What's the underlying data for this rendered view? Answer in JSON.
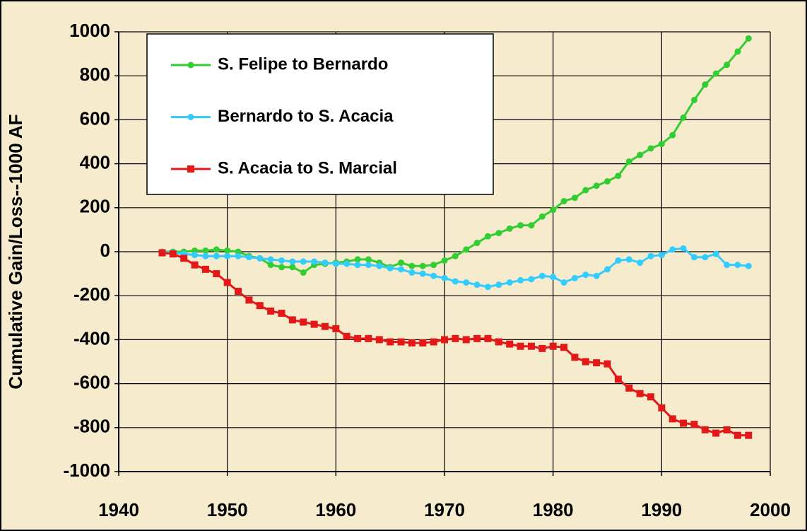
{
  "chart_data": {
    "type": "line",
    "ylabel": "Cumulative Gain/Loss--1000 AF",
    "x": [
      1944,
      1945,
      1946,
      1947,
      1948,
      1949,
      1950,
      1951,
      1952,
      1953,
      1954,
      1955,
      1956,
      1957,
      1958,
      1959,
      1960,
      1961,
      1962,
      1963,
      1964,
      1965,
      1966,
      1967,
      1968,
      1969,
      1970,
      1971,
      1972,
      1973,
      1974,
      1975,
      1976,
      1977,
      1978,
      1979,
      1980,
      1981,
      1982,
      1983,
      1984,
      1985,
      1986,
      1987,
      1988,
      1989,
      1990,
      1991,
      1992,
      1993,
      1994,
      1995,
      1996,
      1997,
      1998
    ],
    "series": [
      {
        "name": "S. Felipe to Bernardo",
        "color": "#33cc33",
        "marker": "circle",
        "values": [
          0,
          0,
          0,
          5,
          5,
          10,
          5,
          0,
          -20,
          -30,
          -60,
          -70,
          -70,
          -95,
          -60,
          -55,
          -50,
          -45,
          -35,
          -35,
          -50,
          -70,
          -50,
          -65,
          -65,
          -60,
          -40,
          -20,
          10,
          40,
          70,
          85,
          105,
          120,
          120,
          160,
          190,
          230,
          245,
          280,
          300,
          320,
          345,
          410,
          440,
          470,
          490,
          530,
          610,
          690,
          760,
          810,
          850,
          910,
          970
        ]
      },
      {
        "name": "Bernardo to S. Acacia",
        "color": "#33ccff",
        "marker": "circle",
        "values": [
          0,
          -5,
          -10,
          -15,
          -20,
          -20,
          -20,
          -20,
          -25,
          -30,
          -35,
          -40,
          -45,
          -45,
          -45,
          -50,
          -55,
          -55,
          -60,
          -60,
          -65,
          -75,
          -80,
          -95,
          -100,
          -110,
          -120,
          -135,
          -140,
          -150,
          -160,
          -150,
          -140,
          -130,
          -125,
          -110,
          -115,
          -140,
          -120,
          -105,
          -110,
          -80,
          -40,
          -35,
          -50,
          -20,
          -15,
          10,
          15,
          -25,
          -25,
          -10,
          -60,
          -60,
          -65
        ]
      },
      {
        "name": "S. Acacia to S. Marcial",
        "color": "#e31919",
        "marker": "square",
        "values": [
          -5,
          -10,
          -30,
          -60,
          -80,
          -100,
          -140,
          -180,
          -220,
          -245,
          -270,
          -280,
          -310,
          -320,
          -330,
          -340,
          -350,
          -385,
          -395,
          -395,
          -400,
          -410,
          -410,
          -415,
          -415,
          -410,
          -400,
          -395,
          -400,
          -395,
          -395,
          -410,
          -420,
          -430,
          -430,
          -440,
          -430,
          -435,
          -480,
          -500,
          -505,
          -510,
          -580,
          -620,
          -645,
          -660,
          -710,
          -760,
          -780,
          -785,
          -810,
          -825,
          -810,
          -835,
          -835
        ]
      }
    ],
    "xlim": [
      1940,
      2000
    ],
    "xticks": [
      1940,
      1950,
      1960,
      1970,
      1980,
      1990,
      2000
    ],
    "ylim": [
      -1000,
      1000
    ],
    "yticks": [
      -1000,
      -800,
      -600,
      -400,
      -200,
      0,
      200,
      400,
      600,
      800,
      1000
    ],
    "grid": true,
    "legend": "upper left"
  }
}
